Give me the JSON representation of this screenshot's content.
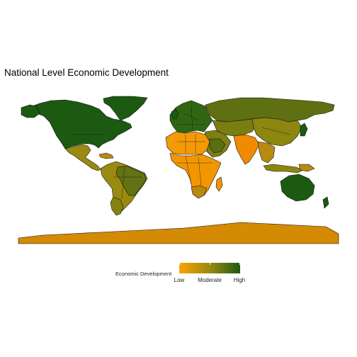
{
  "title": "National Level Economic Development",
  "legend": {
    "title": "Economic Development",
    "labels": [
      "Low",
      "Moderate",
      "High"
    ],
    "colors": {
      "low": "#ffa100",
      "moderate": "#9a8a10",
      "high": "#1c5a12"
    }
  },
  "regions": [
    {
      "name": "North America",
      "level": "High"
    },
    {
      "name": "Central America",
      "level": "Moderate"
    },
    {
      "name": "South America",
      "level": "Moderate"
    },
    {
      "name": "Greenland",
      "level": "High"
    },
    {
      "name": "Europe",
      "level": "High"
    },
    {
      "name": "Russia",
      "level": "Moderate"
    },
    {
      "name": "Central Asia",
      "level": "Moderate"
    },
    {
      "name": "Middle East",
      "level": "Moderate"
    },
    {
      "name": "North Africa",
      "level": "Low"
    },
    {
      "name": "Sub-Saharan Africa",
      "level": "Low"
    },
    {
      "name": "Madagascar",
      "level": "Low"
    },
    {
      "name": "South Asia",
      "level": "Low"
    },
    {
      "name": "China",
      "level": "Moderate"
    },
    {
      "name": "Japan",
      "level": "High"
    },
    {
      "name": "Southeast Asia",
      "level": "Moderate"
    },
    {
      "name": "Indonesia",
      "level": "Moderate"
    },
    {
      "name": "Australia",
      "level": "High"
    },
    {
      "name": "New Zealand",
      "level": "High"
    },
    {
      "name": "Antarctica",
      "level": "Low"
    }
  ]
}
